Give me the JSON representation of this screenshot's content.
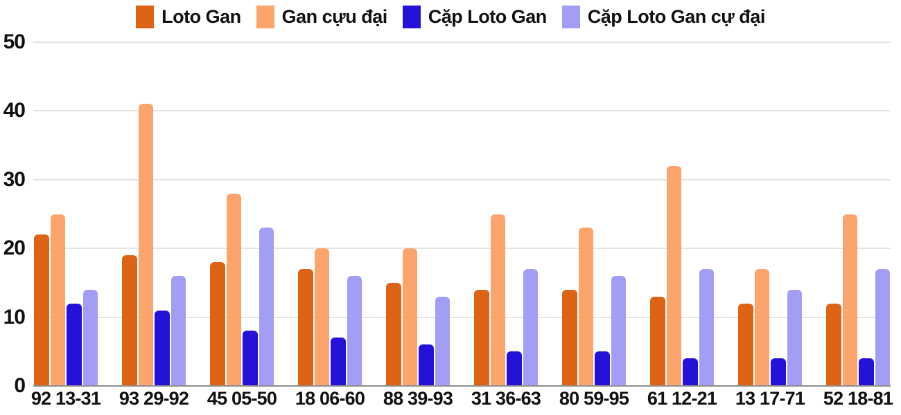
{
  "chart_data": {
    "type": "bar",
    "title": "",
    "xlabel": "",
    "ylabel": "",
    "ylim": [
      0,
      50
    ],
    "yticks": [
      0,
      10,
      20,
      30,
      40,
      50
    ],
    "grid": true,
    "legend_position": "top",
    "background_color": "#ffffff",
    "gridline_color": "#e4e4e4",
    "baseline_color": "#8f8f8f",
    "text_color": "#111111",
    "categories": [
      "92 13-31",
      "93 29-92",
      "45 05-50",
      "18 06-60",
      "88 39-93",
      "31 36-63",
      "80 59-95",
      "61 12-21",
      "13 17-71",
      "52 18-81"
    ],
    "series": [
      {
        "name": "Loto Gan",
        "color": "#dd6414",
        "values": [
          22,
          19,
          18,
          17,
          15,
          14,
          14,
          13,
          12,
          12
        ]
      },
      {
        "name": "Gan cựu đại",
        "color": "#fba56c",
        "values": [
          25,
          41,
          28,
          20,
          20,
          25,
          23,
          32,
          17,
          25
        ]
      },
      {
        "name": "Cặp Loto Gan",
        "color": "#2512d8",
        "values": [
          12,
          11,
          8,
          7,
          6,
          5,
          5,
          4,
          4,
          4
        ]
      },
      {
        "name": "Cặp Loto Gan cự đại",
        "color": "#a29ef5",
        "values": [
          14,
          16,
          23,
          16,
          13,
          17,
          16,
          17,
          14,
          17
        ]
      }
    ]
  }
}
